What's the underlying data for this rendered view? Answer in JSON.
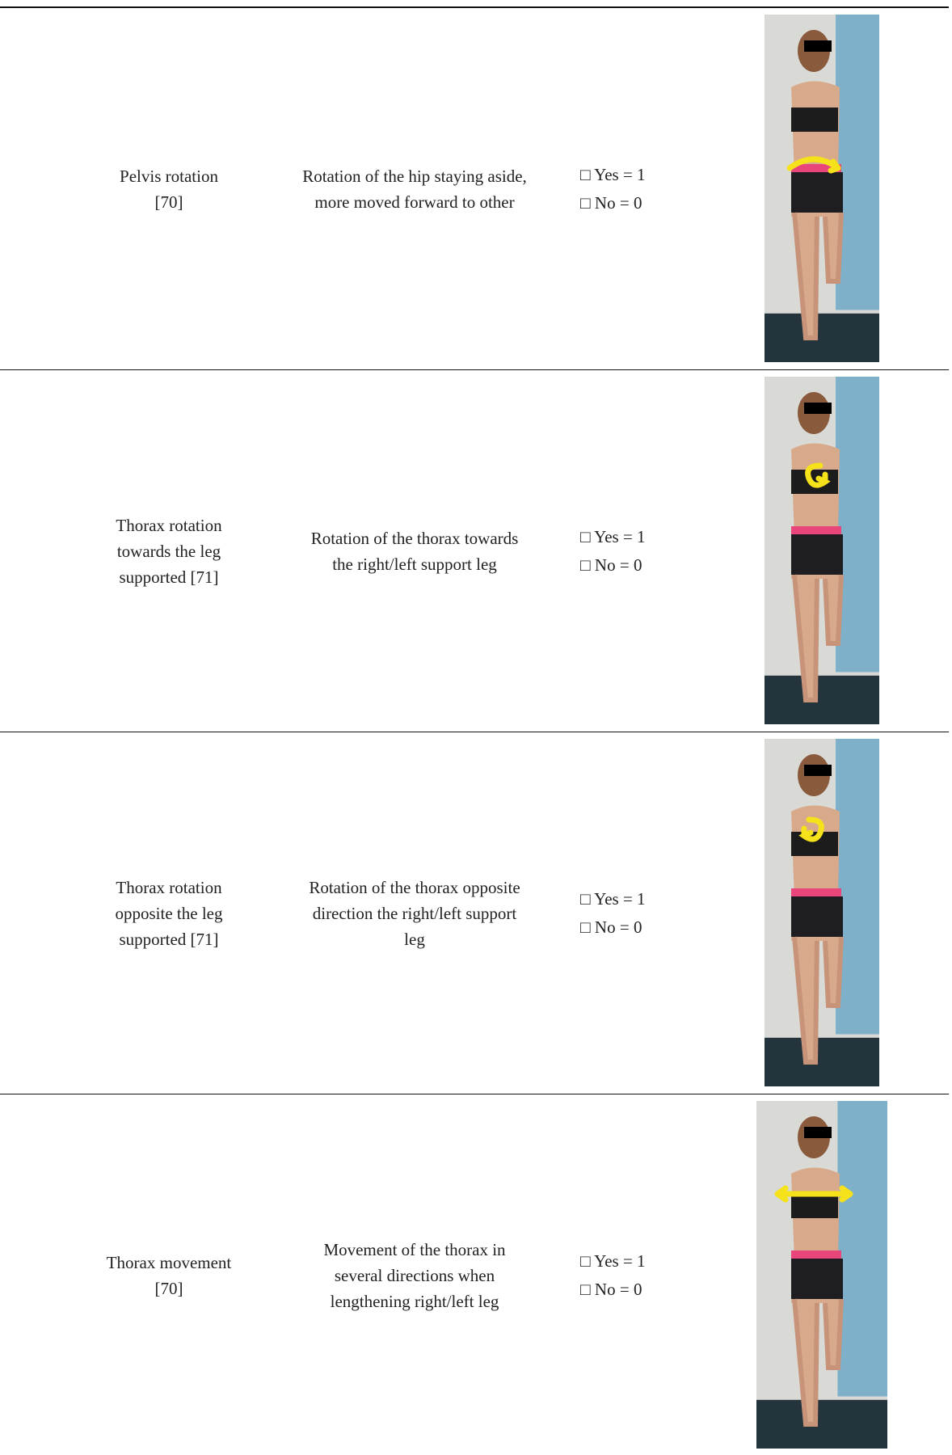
{
  "table": {
    "rows": [
      {
        "name": [
          "Pelvis rotation",
          "[70]"
        ],
        "description": [
          "Rotation of the hip staying aside,",
          "more moved forward to other"
        ],
        "options": [
          "□ Yes = 1",
          "□ No = 0"
        ]
      },
      {
        "name": [
          "Thorax rotation",
          "towards the leg",
          "supported [71]"
        ],
        "description": [
          "Rotation of the thorax towards",
          "the right/left support leg"
        ],
        "options": [
          "□ Yes = 1",
          "□ No = 0"
        ]
      },
      {
        "name": [
          "Thorax rotation",
          "opposite the leg",
          "supported [71]"
        ],
        "description": [
          "Rotation of the thorax opposite",
          "direction the right/left support",
          "leg"
        ],
        "options": [
          "□ Yes = 1",
          "□ No = 0"
        ]
      },
      {
        "name": [
          "Thorax movement",
          "[70]"
        ],
        "description": [
          "Movement of the thorax in",
          "several directions when",
          "lengthening right/left leg"
        ],
        "options": [
          "□ Yes = 1",
          "□ No = 0"
        ]
      }
    ]
  }
}
